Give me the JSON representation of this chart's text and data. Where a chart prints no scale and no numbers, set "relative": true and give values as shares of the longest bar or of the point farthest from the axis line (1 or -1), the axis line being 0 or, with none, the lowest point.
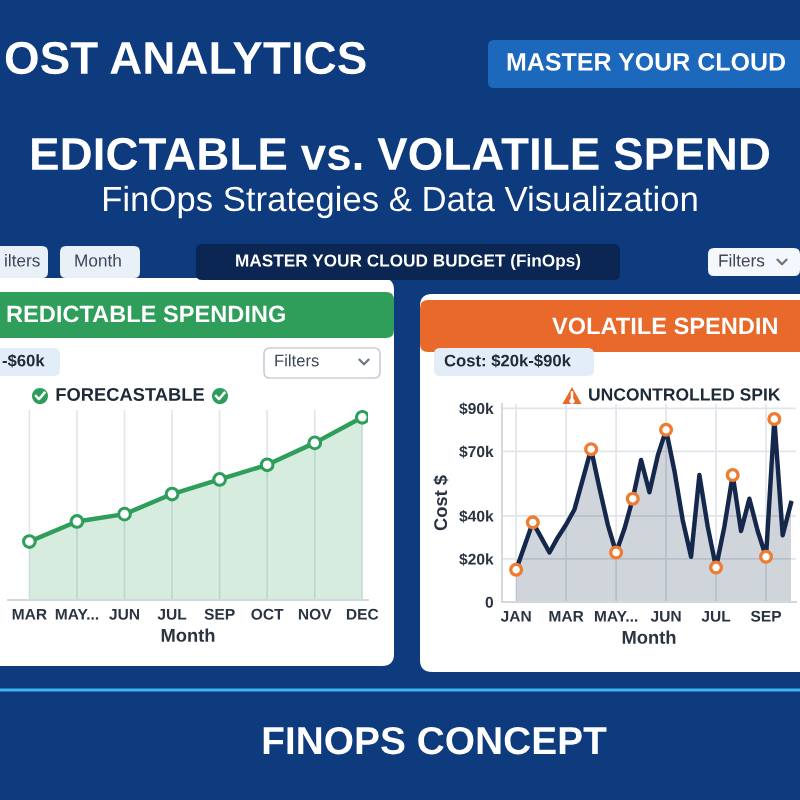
{
  "chart_data": [
    {
      "type": "other",
      "title": "EDICTABLE vs. VOLATILE SPEND",
      "subtitle": "FinOps Strategies & Data Visualization",
      "annotations": [
        "OST ANALYTICS",
        "MASTER YOUR CLOUD",
        "ilters",
        "Month",
        "MASTER YOUR CLOUD BUDGET (FinOps)",
        "Filters"
      ]
    },
    {
      "type": "area",
      "title": "REDICTABLE SPENDING",
      "subtitle": "FORECASTABLE",
      "xlabel": "Month",
      "annotations": [
        "-$60k",
        "Filters"
      ],
      "categories": [
        "MAR",
        "MAY...",
        "JUN",
        "JUL",
        "SEP",
        "OCT",
        "NOV",
        "DEC"
      ],
      "values": [
        0.32,
        0.43,
        0.47,
        0.58,
        0.66,
        0.74,
        0.86,
        1
      ],
      "color": "#2f9e5b",
      "relative": true,
      "grid": "x",
      "marker": "circle"
    },
    {
      "type": "area",
      "title": "VOLATILE SPENDIN",
      "subtitle": "UNCONTROLLED SPIK",
      "xlabel": "Month",
      "ylabel": "Cost $",
      "annotations": [
        "Cost: $20k-$90k"
      ],
      "categories": [
        "JAN",
        null,
        null,
        null,
        null,
        null,
        "MAR",
        null,
        null,
        null,
        null,
        null,
        "MAY...",
        null,
        null,
        null,
        null,
        null,
        "JUN",
        null,
        null,
        null,
        null,
        null,
        "JUL",
        null,
        null,
        null,
        null,
        null,
        "SEP",
        null,
        null,
        null
      ],
      "series": [
        {
          "type": "area",
          "color": "#15284c",
          "values": [
            15,
            26,
            37,
            30,
            23,
            30,
            36,
            43,
            57,
            71,
            53,
            36,
            23,
            34,
            48,
            66,
            51,
            68,
            80,
            61,
            38,
            21,
            59,
            35,
            16,
            35,
            59,
            33,
            48,
            33,
            21,
            85,
            31,
            46
          ]
        },
        {
          "type": "scatter",
          "color": "#ee7d31",
          "values": [
            15,
            null,
            37,
            null,
            null,
            null,
            null,
            null,
            null,
            71,
            null,
            null,
            23,
            null,
            48,
            null,
            null,
            null,
            80,
            null,
            null,
            null,
            null,
            null,
            16,
            null,
            59,
            null,
            null,
            null,
            21,
            85,
            null,
            null
          ]
        }
      ],
      "ylim": [
        0,
        92
      ],
      "yticks": [
        0,
        {
          "value": 20,
          "label": "$20k"
        },
        {
          "value": 40,
          "label": "$40k"
        },
        {
          "value": 70,
          "label": "$70k"
        },
        {
          "value": 90,
          "label": "$90k"
        }
      ],
      "grid": true
    },
    {
      "type": "other",
      "title": "FINOPS CONCEPT"
    }
  ]
}
